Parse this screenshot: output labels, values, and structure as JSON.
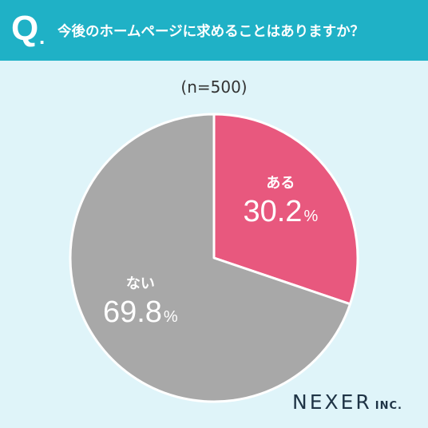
{
  "header": {
    "q_letter": "Q",
    "q_dot": ".",
    "question": "今後のホームページに求めることはありますか？"
  },
  "sample_size": "(n=500)",
  "colors": {
    "header_bg": "#1fb1c6",
    "page_bg": "#dff4f9",
    "slice_yes": "#e8587e",
    "slice_no": "#a8a8a8"
  },
  "chart_data": {
    "type": "pie",
    "title": "今後のホームページに求めることはありますか？",
    "subtitle": "(n=500)",
    "unit": "%",
    "slices": [
      {
        "label": "ある",
        "value": 30.2,
        "value_text": "30.2",
        "color": "#e8587e"
      },
      {
        "label": "ない",
        "value": 69.8,
        "value_text": "69.8",
        "color": "#a8a8a8"
      }
    ]
  },
  "brand": {
    "main": "NEXER",
    "sub": "INC."
  }
}
